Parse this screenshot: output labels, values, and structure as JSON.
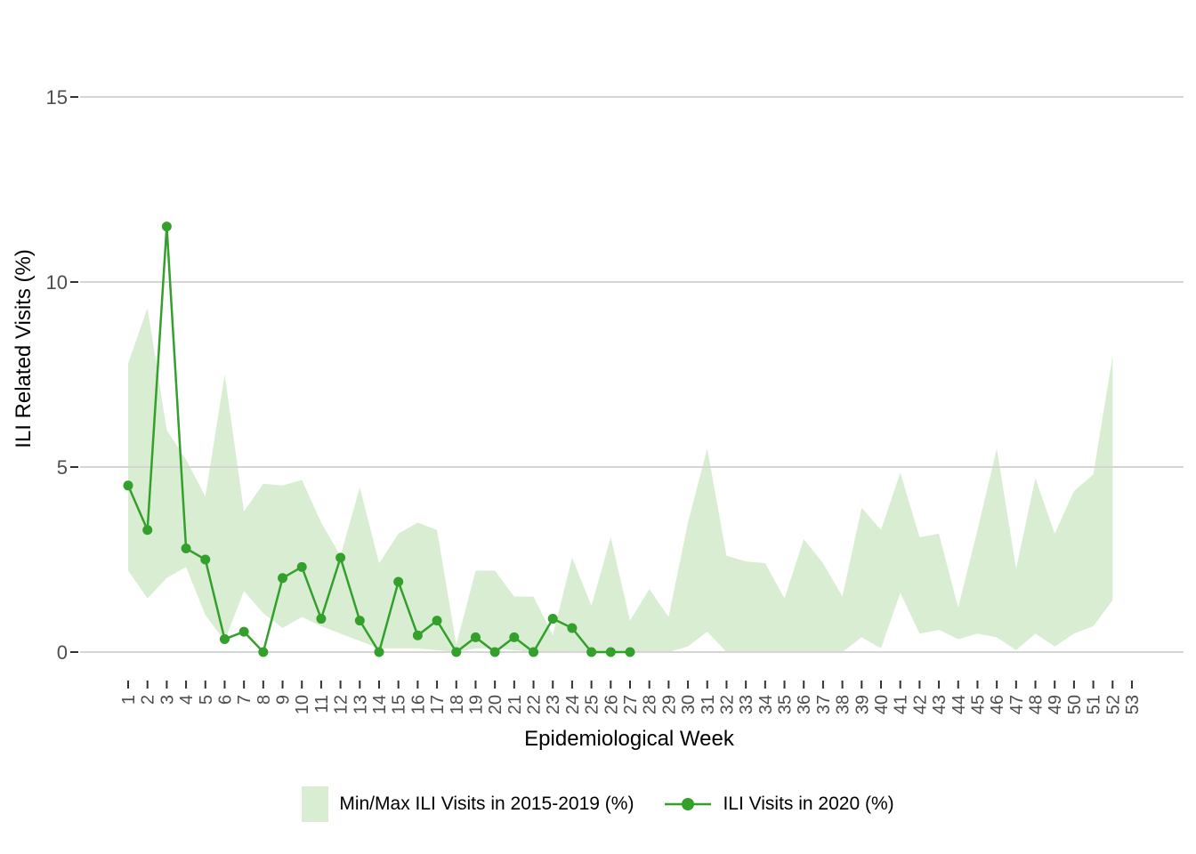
{
  "axes": {
    "y_title": "ILI Related Visits (%)",
    "x_title": "Epidemiological Week",
    "tick_label_color": "#4D4D4D",
    "tick_mark_color": "#333333",
    "grid_color": "#D5D5D5",
    "background": "#FFFFFF"
  },
  "legend": {
    "items": [
      {
        "label": "Min/Max ILI Visits in 2015-2019 (%)",
        "swatch": "filled-area",
        "color": "#D9EDD3"
      },
      {
        "label": "ILI Visits in 2020 (%)",
        "swatch": "line-with-marker",
        "color": "#33A02C"
      }
    ]
  },
  "chart_data": {
    "type": "area",
    "title": "",
    "xlabel": "Epidemiological Week",
    "ylabel": "ILI Related Visits (%)",
    "x_ticks": [
      1,
      2,
      3,
      4,
      5,
      6,
      7,
      8,
      9,
      10,
      11,
      12,
      13,
      14,
      15,
      16,
      17,
      18,
      19,
      20,
      21,
      22,
      23,
      24,
      25,
      26,
      27,
      28,
      29,
      30,
      31,
      32,
      33,
      34,
      35,
      36,
      37,
      38,
      39,
      40,
      41,
      42,
      43,
      44,
      45,
      46,
      47,
      48,
      49,
      50,
      51,
      52,
      53
    ],
    "y_ticks": [
      0,
      5,
      10,
      15
    ],
    "ylim": [
      0,
      15.8
    ],
    "grid": "horizontal",
    "legend_position": "bottom",
    "series": [
      {
        "name": "Min/Max ILI Visits in 2015-2019 (%)",
        "type": "band",
        "fill_color": "#D9EDD3",
        "weeks": [
          1,
          2,
          3,
          4,
          5,
          6,
          7,
          8,
          9,
          10,
          11,
          12,
          13,
          14,
          15,
          16,
          17,
          18,
          19,
          20,
          21,
          22,
          23,
          24,
          25,
          26,
          27,
          28,
          29,
          30,
          31,
          32,
          33,
          34,
          35,
          36,
          37,
          38,
          39,
          40,
          41,
          42,
          43,
          44,
          45,
          46,
          47,
          48,
          49,
          50,
          51,
          52
        ],
        "max": [
          7.8,
          9.3,
          6.0,
          5.2,
          4.2,
          7.5,
          3.8,
          4.55,
          4.5,
          4.65,
          3.5,
          2.6,
          4.45,
          2.4,
          3.2,
          3.5,
          3.3,
          0.2,
          2.2,
          2.2,
          1.5,
          1.5,
          0.45,
          2.55,
          1.25,
          3.1,
          0.85,
          1.7,
          0.95,
          3.5,
          5.5,
          2.6,
          2.45,
          2.4,
          1.45,
          3.05,
          2.4,
          1.5,
          3.9,
          3.3,
          4.85,
          3.1,
          3.2,
          1.2,
          3.3,
          5.5,
          2.25,
          4.7,
          3.2,
          4.35,
          4.8,
          8.0
        ],
        "min": [
          2.2,
          1.45,
          2.0,
          2.3,
          1.0,
          0.3,
          1.65,
          1.05,
          0.65,
          0.95,
          0.7,
          0.5,
          0.3,
          0.1,
          0.1,
          0.1,
          0.05,
          0,
          0.1,
          0.1,
          0.05,
          0,
          0,
          0,
          0,
          0,
          0,
          0,
          0,
          0.15,
          0.55,
          0,
          0,
          0,
          0,
          0,
          0,
          0,
          0.4,
          0.1,
          1.6,
          0.5,
          0.6,
          0.35,
          0.5,
          0.4,
          0.05,
          0.5,
          0.15,
          0.5,
          0.7,
          1.4
        ]
      },
      {
        "name": "ILI Visits in 2020 (%)",
        "type": "line",
        "line_color": "#33A02C",
        "marker": "circle",
        "weeks": [
          1,
          2,
          3,
          4,
          5,
          6,
          7,
          8,
          9,
          10,
          11,
          12,
          13,
          14,
          15,
          16,
          17,
          18,
          19,
          20,
          21,
          22,
          23,
          24,
          25,
          26,
          27
        ],
        "values": [
          4.5,
          3.3,
          11.5,
          2.8,
          2.5,
          0.35,
          0.55,
          0,
          2.0,
          2.3,
          0.9,
          2.55,
          0.85,
          0,
          1.9,
          0.45,
          0.85,
          0,
          0.4,
          0,
          0.4,
          0,
          0.9,
          0.65,
          0,
          0,
          0
        ]
      }
    ]
  }
}
